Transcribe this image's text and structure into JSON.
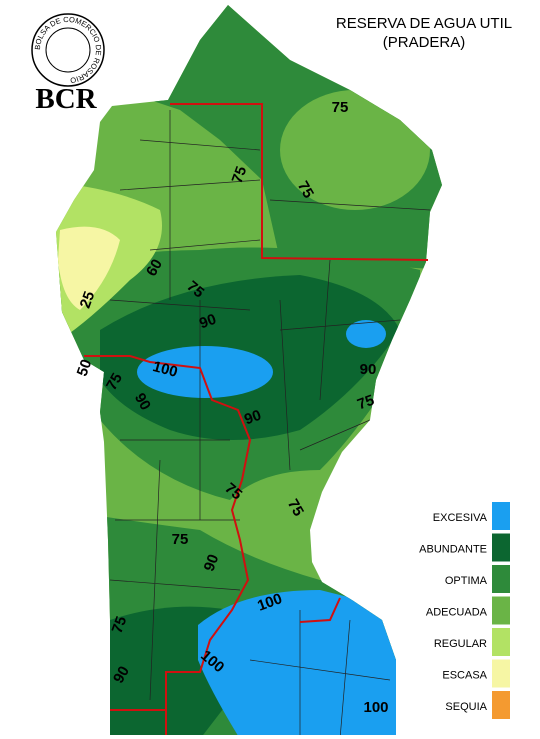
{
  "header": {
    "logo_ring": "BOLSA DE COMERCIO DE ROSARIO",
    "logo": "BCR",
    "title": "RESERVA DE AGUA UTIL",
    "subtitle": "(PRADERA)"
  },
  "legend": [
    {
      "label": "EXCESIVA",
      "color": "#1a9ff0"
    },
    {
      "label": "ABUNDANTE",
      "color": "#0c6630"
    },
    {
      "label": "OPTIMA",
      "color": "#2e8a3a"
    },
    {
      "label": "ADECUADA",
      "color": "#6ab446"
    },
    {
      "label": "REGULAR",
      "color": "#b2e264"
    },
    {
      "label": "ESCASA",
      "color": "#f6f6a4"
    },
    {
      "label": "SEQUIA",
      "color": "#f49a30"
    }
  ],
  "contour_labels": [
    "75",
    "75",
    "75",
    "60",
    "75",
    "25",
    "90",
    "50",
    "100",
    "75",
    "90",
    "90",
    "75",
    "90",
    "75",
    "75",
    "75",
    "90",
    "100",
    "75",
    "100",
    "90",
    "100"
  ]
}
